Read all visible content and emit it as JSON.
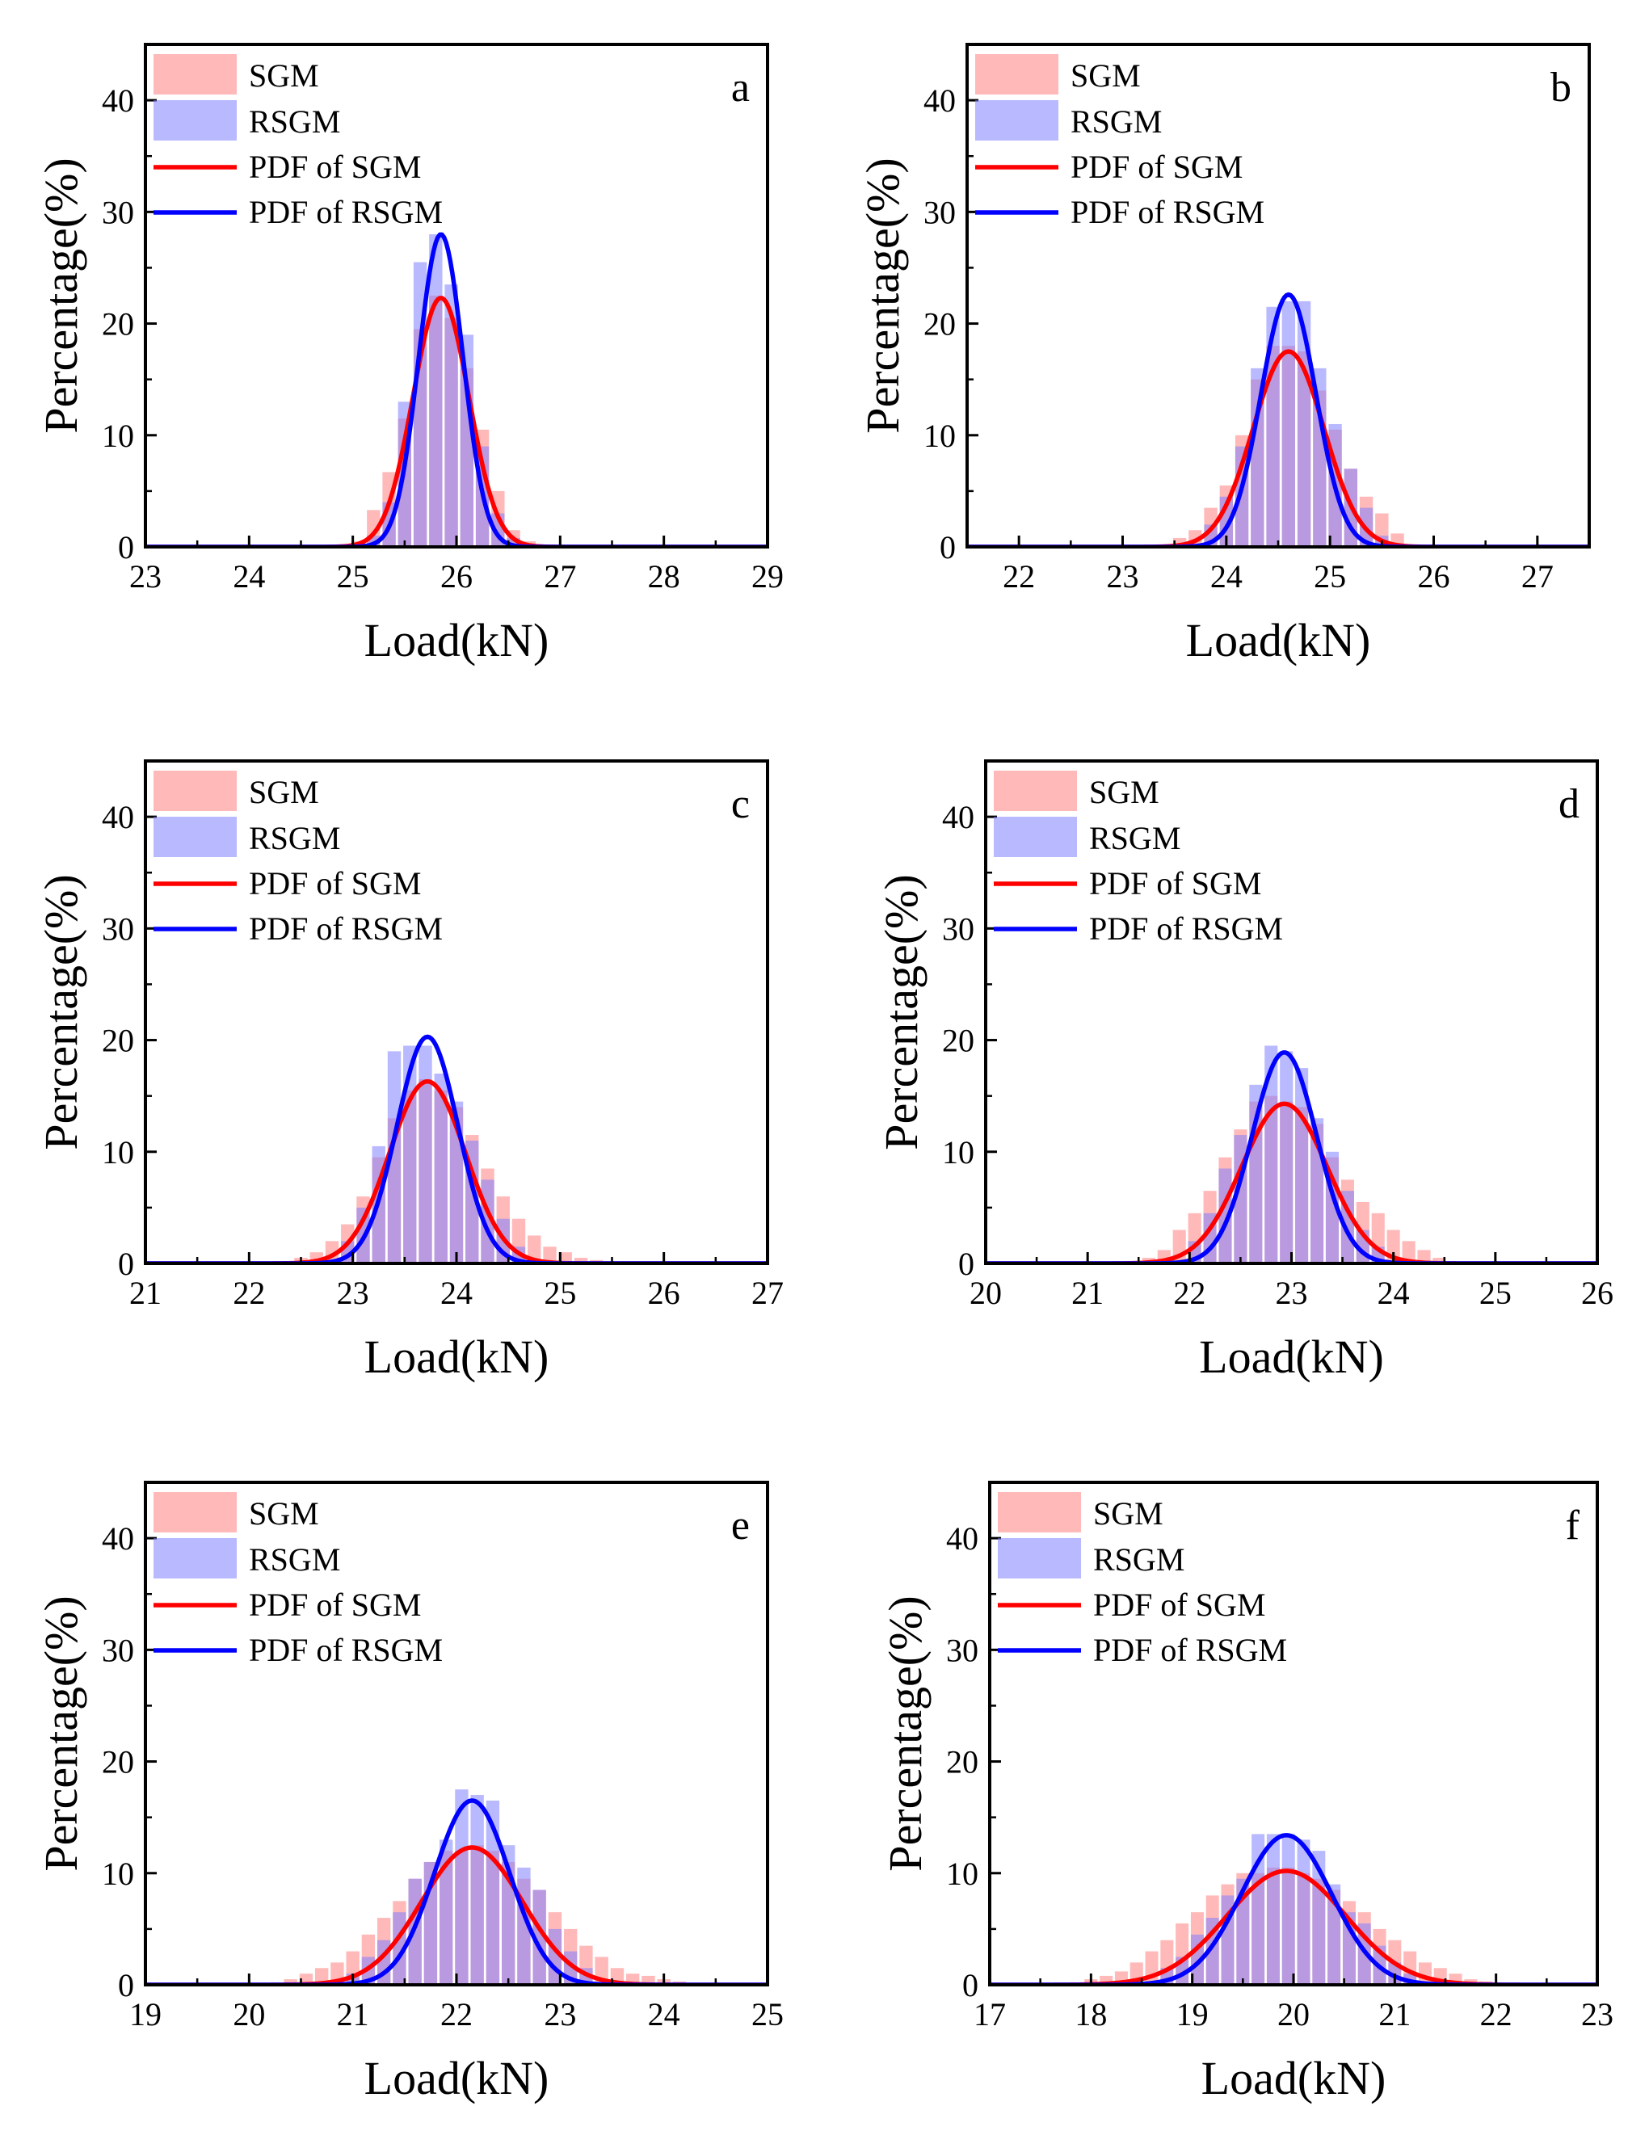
{
  "colors": {
    "sgm_bar": "#ff8080",
    "rsgm_bar": "#8080ff",
    "sgm_bar_opacity": 0.55,
    "rsgm_bar_opacity": 0.55,
    "sgm_line": "#ff0000",
    "rsgm_line": "#0000ff",
    "axis": "#000000"
  },
  "legend": {
    "sgm": "SGM",
    "rsgm": "RSGM",
    "pdf_sgm": "PDF of SGM",
    "pdf_rsgm": "PDF of RSGM"
  },
  "chart_data": [
    {
      "type": "bar",
      "panel": "a",
      "xlabel": "Load(kN)",
      "ylabel": "Percentage(%)",
      "xlim": [
        23,
        29
      ],
      "ylim": [
        0,
        45
      ],
      "xticks": [
        23,
        24,
        25,
        26,
        27,
        28,
        29
      ],
      "yticks": [
        0,
        10,
        20,
        30,
        40
      ],
      "bin_width": 0.15,
      "series": [
        {
          "name": "SGM",
          "x": [
            25.05,
            25.2,
            25.35,
            25.5,
            25.65,
            25.8,
            25.95,
            26.1,
            26.25,
            26.4,
            26.55,
            26.7,
            26.85
          ],
          "values": [
            0.5,
            3.3,
            6.7,
            11.5,
            19.5,
            22.5,
            20.5,
            16.0,
            10.5,
            5.0,
            1.5,
            0.5,
            0.2
          ]
        },
        {
          "name": "RSGM",
          "x": [
            25.2,
            25.35,
            25.5,
            25.65,
            25.8,
            25.95,
            26.1,
            26.25,
            26.4,
            26.55
          ],
          "values": [
            1.0,
            4.0,
            13.0,
            25.5,
            28.0,
            23.5,
            19.0,
            9.0,
            3.0,
            0.8
          ]
        },
        {
          "name": "PDF of SGM",
          "mean": 25.85,
          "peak": 22.3
        },
        {
          "name": "PDF of RSGM",
          "mean": 25.85,
          "peak": 28.0
        }
      ]
    },
    {
      "type": "bar",
      "panel": "b",
      "xlabel": "Load(kN)",
      "ylabel": "Percentage(%)",
      "xlim": [
        21.5,
        27.5
      ],
      "ylim": [
        0,
        45
      ],
      "xticks": [
        22,
        23,
        24,
        25,
        26,
        27
      ],
      "yticks": [
        0,
        10,
        20,
        30,
        40
      ],
      "bin_width": 0.15,
      "series": [
        {
          "name": "SGM",
          "x": [
            23.55,
            23.7,
            23.85,
            24.0,
            24.15,
            24.3,
            24.45,
            24.6,
            24.75,
            24.9,
            25.05,
            25.2,
            25.35,
            25.5,
            25.65
          ],
          "values": [
            0.8,
            1.5,
            3.5,
            5.5,
            10.0,
            15.0,
            18.0,
            18.0,
            17.5,
            14.0,
            10.5,
            7.0,
            4.5,
            3.0,
            1.2
          ]
        },
        {
          "name": "RSGM",
          "x": [
            23.85,
            24.0,
            24.15,
            24.3,
            24.45,
            24.6,
            24.75,
            24.9,
            25.05,
            25.2,
            25.35,
            25.5
          ],
          "values": [
            2.0,
            4.5,
            9.0,
            16.0,
            21.5,
            22.0,
            22.0,
            16.0,
            11.0,
            7.0,
            3.5,
            1.0
          ]
        },
        {
          "name": "PDF of SGM",
          "mean": 24.6,
          "peak": 17.5
        },
        {
          "name": "PDF of RSGM",
          "mean": 24.6,
          "peak": 22.6
        }
      ]
    },
    {
      "type": "bar",
      "panel": "c",
      "xlabel": "Load(kN)",
      "ylabel": "Percentage(%)",
      "xlim": [
        21,
        27
      ],
      "ylim": [
        0,
        45
      ],
      "xticks": [
        21,
        22,
        23,
        24,
        25,
        26,
        27
      ],
      "yticks": [
        0,
        10,
        20,
        30,
        40
      ],
      "bin_width": 0.15,
      "series": [
        {
          "name": "SGM",
          "x": [
            22.5,
            22.65,
            22.8,
            22.95,
            23.1,
            23.25,
            23.4,
            23.55,
            23.7,
            23.85,
            24.0,
            24.15,
            24.3,
            24.45,
            24.6,
            24.75,
            24.9,
            25.05,
            25.2,
            25.35
          ],
          "values": [
            0.5,
            1.0,
            2.0,
            3.5,
            6.0,
            9.5,
            13.0,
            15.5,
            16.5,
            15.5,
            14.0,
            11.5,
            8.5,
            6.0,
            4.0,
            2.5,
            1.5,
            1.0,
            0.5,
            0.3
          ]
        },
        {
          "name": "RSGM",
          "x": [
            22.95,
            23.1,
            23.25,
            23.4,
            23.55,
            23.7,
            23.85,
            24.0,
            24.15,
            24.3,
            24.45,
            24.6
          ],
          "values": [
            2.0,
            5.0,
            10.5,
            19.0,
            19.5,
            19.5,
            17.0,
            14.5,
            11.0,
            7.5,
            4.0,
            1.5
          ]
        },
        {
          "name": "PDF of SGM",
          "mean": 23.72,
          "peak": 16.3
        },
        {
          "name": "PDF of RSGM",
          "mean": 23.72,
          "peak": 20.3
        }
      ]
    },
    {
      "type": "bar",
      "panel": "d",
      "xlabel": "Load(kN)",
      "ylabel": "Percentage(%)",
      "xlim": [
        20,
        26
      ],
      "ylim": [
        0,
        45
      ],
      "xticks": [
        20,
        21,
        22,
        23,
        24,
        25,
        26
      ],
      "yticks": [
        0,
        10,
        20,
        30,
        40
      ],
      "bin_width": 0.15,
      "series": [
        {
          "name": "SGM",
          "x": [
            21.6,
            21.75,
            21.9,
            22.05,
            22.2,
            22.35,
            22.5,
            22.65,
            22.8,
            22.95,
            23.1,
            23.25,
            23.4,
            23.55,
            23.7,
            23.85,
            24.0,
            24.15,
            24.3,
            24.45
          ],
          "values": [
            0.5,
            1.2,
            3.0,
            4.5,
            6.5,
            9.5,
            12.0,
            14.5,
            15.0,
            14.5,
            14.0,
            12.5,
            9.5,
            7.5,
            5.5,
            4.5,
            3.0,
            2.0,
            1.2,
            0.5
          ]
        },
        {
          "name": "RSGM",
          "x": [
            22.05,
            22.2,
            22.35,
            22.5,
            22.65,
            22.8,
            22.95,
            23.1,
            23.25,
            23.4,
            23.55,
            23.7,
            23.85
          ],
          "values": [
            2.0,
            4.5,
            8.5,
            11.5,
            16.0,
            19.5,
            19.0,
            17.5,
            13.0,
            10.0,
            6.5,
            3.0,
            1.5
          ]
        },
        {
          "name": "PDF of SGM",
          "mean": 22.93,
          "peak": 14.3
        },
        {
          "name": "PDF of RSGM",
          "mean": 22.93,
          "peak": 18.9
        }
      ]
    },
    {
      "type": "bar",
      "panel": "e",
      "xlabel": "Load(kN)",
      "ylabel": "Percentage(%)",
      "xlim": [
        19,
        25
      ],
      "ylim": [
        0,
        45
      ],
      "xticks": [
        19,
        20,
        21,
        22,
        23,
        24,
        25
      ],
      "yticks": [
        0,
        10,
        20,
        30,
        40
      ],
      "bin_width": 0.15,
      "series": [
        {
          "name": "SGM",
          "x": [
            20.4,
            20.55,
            20.7,
            20.85,
            21.0,
            21.15,
            21.3,
            21.45,
            21.6,
            21.75,
            21.9,
            22.05,
            22.2,
            22.35,
            22.5,
            22.65,
            22.8,
            22.95,
            23.1,
            23.25,
            23.4,
            23.55,
            23.7,
            23.85,
            24.0,
            24.15
          ],
          "values": [
            0.5,
            1.0,
            1.5,
            2.0,
            3.0,
            4.5,
            6.0,
            7.5,
            9.5,
            11.0,
            12.0,
            12.0,
            12.5,
            12.0,
            11.0,
            9.5,
            8.5,
            6.5,
            5.0,
            3.5,
            2.5,
            1.5,
            1.0,
            0.8,
            0.5,
            0.3
          ]
        },
        {
          "name": "RSGM",
          "x": [
            21.0,
            21.15,
            21.3,
            21.45,
            21.6,
            21.75,
            21.9,
            22.05,
            22.2,
            22.35,
            22.5,
            22.65,
            22.8,
            22.95,
            23.1,
            23.25
          ],
          "values": [
            1.0,
            2.5,
            4.0,
            6.5,
            9.5,
            11.0,
            13.0,
            17.5,
            17.0,
            16.5,
            12.5,
            10.5,
            8.5,
            5.0,
            3.0,
            1.5
          ]
        },
        {
          "name": "PDF of SGM",
          "mean": 22.15,
          "peak": 12.3
        },
        {
          "name": "PDF of RSGM",
          "mean": 22.15,
          "peak": 16.5
        }
      ]
    },
    {
      "type": "bar",
      "panel": "f",
      "xlabel": "Load(kN)",
      "ylabel": "Percentage(%)",
      "xlim": [
        17,
        23
      ],
      "ylim": [
        0,
        45
      ],
      "xticks": [
        17,
        18,
        19,
        20,
        21,
        22,
        23
      ],
      "yticks": [
        0,
        10,
        20,
        30,
        40
      ],
      "bin_width": 0.15,
      "series": [
        {
          "name": "SGM",
          "x": [
            18.0,
            18.15,
            18.3,
            18.45,
            18.6,
            18.75,
            18.9,
            19.05,
            19.2,
            19.35,
            19.5,
            19.65,
            19.8,
            19.95,
            20.1,
            20.25,
            20.4,
            20.55,
            20.7,
            20.85,
            21.0,
            21.15,
            21.3,
            21.45,
            21.6,
            21.75,
            21.9
          ],
          "values": [
            0.5,
            0.8,
            1.2,
            2.0,
            3.0,
            4.0,
            5.5,
            6.5,
            8.0,
            9.0,
            10.0,
            10.0,
            10.5,
            10.5,
            10.0,
            9.5,
            8.5,
            7.5,
            6.5,
            5.0,
            4.0,
            3.0,
            2.0,
            1.5,
            1.0,
            0.5,
            0.3
          ]
        },
        {
          "name": "RSGM",
          "x": [
            18.75,
            18.9,
            19.05,
            19.2,
            19.35,
            19.5,
            19.65,
            19.8,
            19.95,
            20.1,
            20.25,
            20.4,
            20.55,
            20.7,
            20.85,
            21.0,
            21.15
          ],
          "values": [
            1.5,
            2.5,
            4.5,
            6.0,
            8.0,
            9.5,
            13.5,
            13.5,
            13.5,
            13.0,
            12.0,
            9.0,
            6.5,
            5.5,
            3.5,
            2.0,
            1.0
          ]
        },
        {
          "name": "PDF of SGM",
          "mean": 19.93,
          "peak": 10.2
        },
        {
          "name": "PDF of RSGM",
          "mean": 19.93,
          "peak": 13.4
        }
      ]
    }
  ]
}
